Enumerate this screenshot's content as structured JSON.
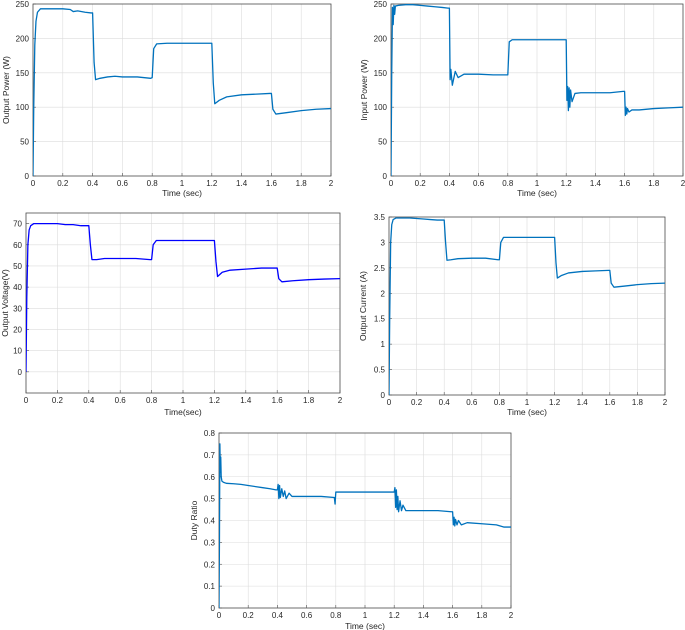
{
  "chart_data": [
    {
      "type": "line",
      "title": "",
      "xlabel": "Time (sec)",
      "ylabel": "Output Power (W)",
      "xlim": [
        0,
        2
      ],
      "ylim": [
        0,
        250
      ],
      "xticks": [
        "0",
        "0.2",
        "0.4",
        "0.6",
        "0.8",
        "1",
        "1.2",
        "1.4",
        "1.6",
        "1.8",
        "2"
      ],
      "yticks": [
        "0",
        "50",
        "100",
        "150",
        "200",
        "250"
      ],
      "grid": true,
      "color": "#0072bd",
      "series": [
        {
          "x": [
            0,
            0.005,
            0.012,
            0.02,
            0.03,
            0.05,
            0.08,
            0.1,
            0.15,
            0.2,
            0.25,
            0.27,
            0.3,
            0.35,
            0.39,
            0.4,
            0.41,
            0.42,
            0.45,
            0.5,
            0.55,
            0.6,
            0.7,
            0.79,
            0.8,
            0.81,
            0.83,
            0.9,
            1.0,
            1.1,
            1.19,
            1.2,
            1.21,
            1.22,
            1.25,
            1.3,
            1.4,
            1.5,
            1.59,
            1.6,
            1.61,
            1.63,
            1.7,
            1.8,
            1.9,
            2.0
          ],
          "y": [
            0,
            100,
            190,
            225,
            238,
            243,
            243,
            243,
            243,
            243,
            242,
            239,
            240,
            238,
            237,
            237,
            165,
            140,
            142,
            144,
            145,
            144,
            144,
            142,
            143,
            185,
            192,
            193,
            193,
            193,
            193,
            193,
            135,
            105,
            110,
            115,
            118,
            119,
            120,
            120,
            97,
            90,
            92,
            95,
            97,
            98
          ]
        }
      ]
    },
    {
      "type": "line",
      "title": "",
      "xlabel": "Time (sec)",
      "ylabel": "Input Power (W)",
      "xlim": [
        0,
        2
      ],
      "ylim": [
        0,
        250
      ],
      "xticks": [
        "0",
        "0.2",
        "0.4",
        "0.6",
        "0.8",
        "1",
        "1.2",
        "1.4",
        "1.6",
        "1.8",
        "2"
      ],
      "yticks": [
        "0",
        "50",
        "100",
        "150",
        "200",
        "250"
      ],
      "grid": true,
      "color": "#0072bd",
      "series": [
        {
          "x": [
            0,
            0.005,
            0.01,
            0.015,
            0.02,
            0.025,
            0.03,
            0.05,
            0.1,
            0.15,
            0.2,
            0.25,
            0.3,
            0.35,
            0.39,
            0.4,
            0.405,
            0.41,
            0.42,
            0.44,
            0.46,
            0.5,
            0.6,
            0.7,
            0.79,
            0.8,
            0.81,
            0.83,
            0.9,
            1.0,
            1.1,
            1.19,
            1.2,
            1.205,
            1.21,
            1.215,
            1.22,
            1.225,
            1.23,
            1.24,
            1.26,
            1.3,
            1.4,
            1.5,
            1.59,
            1.6,
            1.605,
            1.61,
            1.615,
            1.62,
            1.63,
            1.65,
            1.7,
            1.8,
            1.9,
            2.0
          ],
          "y": [
            0,
            150,
            245,
            220,
            248,
            235,
            247,
            248,
            249,
            249,
            248,
            247,
            246,
            245,
            244,
            244,
            140,
            155,
            132,
            152,
            143,
            148,
            148,
            147,
            147,
            147,
            195,
            198,
            198,
            198,
            198,
            198,
            198,
            110,
            130,
            95,
            128,
            100,
            125,
            108,
            120,
            121,
            121,
            121,
            123,
            123,
            88,
            100,
            90,
            98,
            93,
            96,
            96,
            98,
            99,
            100
          ]
        }
      ]
    },
    {
      "type": "line",
      "title": "",
      "xlabel": "Time(sec)",
      "ylabel": "Output Voltage(V)",
      "xlim": [
        0,
        2
      ],
      "ylim": [
        -10,
        75
      ],
      "xticks": [
        "0",
        "0.2",
        "0.4",
        "0.6",
        "0.8",
        "1",
        "1.2",
        "1.4",
        "1.6",
        "1.8",
        "2"
      ],
      "yticks": [
        "0",
        "10",
        "20",
        "30",
        "40",
        "50",
        "60",
        "70"
      ],
      "grid": true,
      "color": "#0000ff",
      "series": [
        {
          "x": [
            0,
            0.005,
            0.012,
            0.02,
            0.03,
            0.05,
            0.1,
            0.15,
            0.2,
            0.25,
            0.3,
            0.35,
            0.39,
            0.4,
            0.41,
            0.42,
            0.45,
            0.5,
            0.6,
            0.7,
            0.79,
            0.8,
            0.81,
            0.83,
            0.9,
            1.0,
            1.1,
            1.19,
            1.2,
            1.21,
            1.22,
            1.25,
            1.3,
            1.4,
            1.5,
            1.59,
            1.6,
            1.61,
            1.63,
            1.7,
            1.8,
            1.9,
            2.0
          ],
          "y": [
            0,
            35,
            60,
            67,
            69,
            70,
            70,
            70,
            70,
            69.5,
            69.5,
            69,
            69,
            69,
            60,
            53,
            53,
            53.5,
            53.5,
            53.5,
            53,
            53,
            60,
            62,
            62,
            62,
            62,
            62,
            62,
            52,
            45,
            47,
            48,
            48.5,
            49,
            49,
            49,
            44,
            42.5,
            43,
            43.5,
            43.8,
            44
          ]
        }
      ]
    },
    {
      "type": "line",
      "title": "",
      "xlabel": "Time (sec)",
      "ylabel": "Output Current (A)",
      "xlim": [
        0,
        2
      ],
      "ylim": [
        0,
        3.5
      ],
      "xticks": [
        "0",
        "0.2",
        "0.4",
        "0.6",
        "0.8",
        "1",
        "1.2",
        "1.4",
        "1.6",
        "1.8",
        "2"
      ],
      "yticks": [
        "0",
        "0.5",
        "1",
        "1.5",
        "2",
        "2.5",
        "3",
        "3.5"
      ],
      "grid": true,
      "color": "#0072bd",
      "series": [
        {
          "x": [
            0,
            0.005,
            0.012,
            0.02,
            0.03,
            0.05,
            0.1,
            0.15,
            0.2,
            0.25,
            0.3,
            0.35,
            0.39,
            0.4,
            0.41,
            0.42,
            0.45,
            0.5,
            0.6,
            0.7,
            0.79,
            0.8,
            0.81,
            0.83,
            0.9,
            1.0,
            1.1,
            1.19,
            1.2,
            1.21,
            1.22,
            1.25,
            1.3,
            1.4,
            1.5,
            1.59,
            1.6,
            1.61,
            1.63,
            1.7,
            1.8,
            1.9,
            2.0
          ],
          "y": [
            0,
            1.5,
            3.0,
            3.35,
            3.45,
            3.48,
            3.48,
            3.48,
            3.47,
            3.46,
            3.45,
            3.44,
            3.44,
            3.44,
            3.0,
            2.65,
            2.66,
            2.68,
            2.69,
            2.69,
            2.66,
            2.66,
            3.0,
            3.1,
            3.1,
            3.1,
            3.1,
            3.1,
            3.1,
            2.6,
            2.3,
            2.35,
            2.4,
            2.43,
            2.44,
            2.45,
            2.45,
            2.2,
            2.12,
            2.14,
            2.17,
            2.19,
            2.2
          ]
        }
      ]
    },
    {
      "type": "line",
      "title": "",
      "xlabel": "Time (sec)",
      "ylabel": "Duty Ratio",
      "xlim": [
        0,
        2
      ],
      "ylim": [
        0,
        0.8
      ],
      "xticks": [
        "0",
        "0.2",
        "0.4",
        "0.6",
        "0.8",
        "1",
        "1.2",
        "1.4",
        "1.6",
        "1.8",
        "2"
      ],
      "yticks": [
        "0",
        "0.1",
        "0.2",
        "0.3",
        "0.4",
        "0.5",
        "0.6",
        "0.7",
        "0.8"
      ],
      "grid": true,
      "color": "#0072bd",
      "series": [
        {
          "x": [
            0,
            0.003,
            0.006,
            0.009,
            0.012,
            0.015,
            0.02,
            0.03,
            0.05,
            0.1,
            0.15,
            0.2,
            0.25,
            0.3,
            0.35,
            0.39,
            0.4,
            0.405,
            0.41,
            0.415,
            0.42,
            0.43,
            0.44,
            0.45,
            0.46,
            0.48,
            0.5,
            0.55,
            0.6,
            0.7,
            0.79,
            0.795,
            0.8,
            0.805,
            0.81,
            0.9,
            1.0,
            1.1,
            1.19,
            1.2,
            1.205,
            1.21,
            1.215,
            1.22,
            1.225,
            1.23,
            1.24,
            1.25,
            1.26,
            1.28,
            1.3,
            1.4,
            1.5,
            1.59,
            1.6,
            1.605,
            1.61,
            1.615,
            1.62,
            1.63,
            1.64,
            1.66,
            1.7,
            1.8,
            1.9,
            1.95,
            2.0
          ],
          "y": [
            0,
            0.3,
            0.75,
            0.62,
            0.69,
            0.6,
            0.58,
            0.575,
            0.57,
            0.568,
            0.565,
            0.56,
            0.555,
            0.55,
            0.545,
            0.54,
            0.54,
            0.565,
            0.5,
            0.56,
            0.505,
            0.545,
            0.51,
            0.535,
            0.5,
            0.525,
            0.51,
            0.51,
            0.51,
            0.51,
            0.505,
            0.475,
            0.53,
            0.53,
            0.53,
            0.53,
            0.53,
            0.53,
            0.53,
            0.53,
            0.55,
            0.46,
            0.54,
            0.45,
            0.51,
            0.44,
            0.49,
            0.445,
            0.47,
            0.445,
            0.445,
            0.445,
            0.445,
            0.44,
            0.44,
            0.38,
            0.415,
            0.375,
            0.405,
            0.38,
            0.4,
            0.38,
            0.39,
            0.385,
            0.38,
            0.37,
            0.37
          ]
        }
      ]
    }
  ]
}
